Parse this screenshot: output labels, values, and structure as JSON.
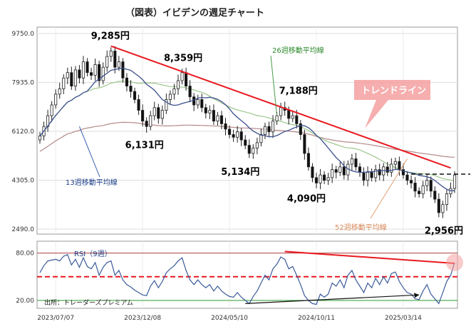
{
  "chart_data": {
    "type": "candlestick",
    "title": "（図表）イビデンの週足チャート",
    "source": "出所：トレーダーズプレミアム",
    "price_axis": {
      "ticks": [
        "9750.0",
        "7935.0",
        "6120.0",
        "4305.0",
        "2490.0"
      ],
      "values": [
        9750,
        7935,
        6120,
        4305,
        2490
      ],
      "ylim": [
        2490,
        9750
      ]
    },
    "rsi_axis": {
      "ticks": [
        "80.00",
        "20.00"
      ],
      "values": [
        80,
        20
      ],
      "ylim": [
        10,
        95
      ]
    },
    "x_ticks": [
      "2023/07/07",
      "2023/12/08",
      "2024/05/10",
      "2024/10/11",
      "2025/03/14"
    ],
    "x_tick_index": [
      4,
      26,
      48,
      70,
      92
    ],
    "n_weeks": 106,
    "annotations": [
      {
        "text": "9,285円",
        "week": 18,
        "price": 9285
      },
      {
        "text": "8,359円",
        "week": 35,
        "price": 8359
      },
      {
        "text": "7,188円",
        "week": 62,
        "price": 7188
      },
      {
        "text": "6,131円",
        "week": 27,
        "price": 6131
      },
      {
        "text": "5,134円",
        "week": 52,
        "price": 5134
      },
      {
        "text": "4,090円",
        "week": 68,
        "price": 4090
      },
      {
        "text": "2,956円",
        "week": 101,
        "price": 2956
      }
    ],
    "ma_labels": {
      "ma13": "13週移動平均線",
      "ma26": "26週移動平均線",
      "ma52": "52週移動平均線"
    },
    "trendline_label": "トレンドライン",
    "rsi_label": "RSI（9週）",
    "close": [
      5950,
      6300,
      6700,
      7100,
      7500,
      7700,
      8100,
      8300,
      7800,
      8400,
      8100,
      8700,
      8300,
      8200,
      8600,
      8000,
      8500,
      8900,
      9100,
      8500,
      8700,
      8100,
      7800,
      7600,
      7300,
      6900,
      6500,
      6300,
      6700,
      7000,
      6600,
      6900,
      7300,
      7500,
      7700,
      8000,
      8300,
      7800,
      7400,
      7100,
      7300,
      7000,
      6800,
      6900,
      6500,
      6700,
      6400,
      6200,
      6000,
      5900,
      6100,
      5800,
      5600,
      5300,
      5500,
      5700,
      6000,
      6300,
      6100,
      6500,
      6700,
      7000,
      6900,
      6600,
      6700,
      6400,
      6000,
      5300,
      4800,
      4400,
      4200,
      4500,
      4300,
      4400,
      4700,
      4600,
      4800,
      4500,
      4900,
      5100,
      4800,
      4600,
      4300,
      4600,
      4400,
      4700,
      4500,
      4800,
      4600,
      4900,
      5000,
      4700,
      4500,
      4300,
      4200,
      3900,
      3800,
      4100,
      4300,
      3900,
      3600,
      3100,
      3400,
      3800,
      4000,
      4500
    ],
    "rsi": [
      55,
      64,
      70,
      71,
      72,
      70,
      76,
      78,
      65,
      72,
      62,
      74,
      63,
      60,
      68,
      52,
      62,
      68,
      70,
      52,
      58,
      46,
      40,
      37,
      33,
      30,
      27,
      26,
      38,
      45,
      36,
      44,
      55,
      60,
      64,
      70,
      74,
      58,
      46,
      40,
      46,
      40,
      36,
      40,
      32,
      38,
      32,
      28,
      25,
      24,
      30,
      24,
      20,
      16,
      25,
      32,
      42,
      52,
      46,
      60,
      66,
      75,
      72,
      60,
      63,
      52,
      40,
      26,
      20,
      16,
      15,
      28,
      24,
      28,
      42,
      38,
      46,
      36,
      52,
      58,
      46,
      38,
      30,
      42,
      36,
      48,
      40,
      50,
      42,
      54,
      56,
      44,
      36,
      30,
      28,
      22,
      21,
      32,
      40,
      28,
      22,
      16,
      30,
      44,
      52,
      68
    ],
    "horizontal_line_price": 4530
  },
  "colors": {
    "trendline": "#e8191f",
    "ma13": "#3a4f8c",
    "ma26": "#9cc68c",
    "ma52": "#b58a8a",
    "rsi_line": "#3b5b9a",
    "rsi_band": "#b04040",
    "rsi_mid": "#e8191f",
    "rsi_low": "#2e9a2e",
    "callout": "#f4a0a0"
  }
}
